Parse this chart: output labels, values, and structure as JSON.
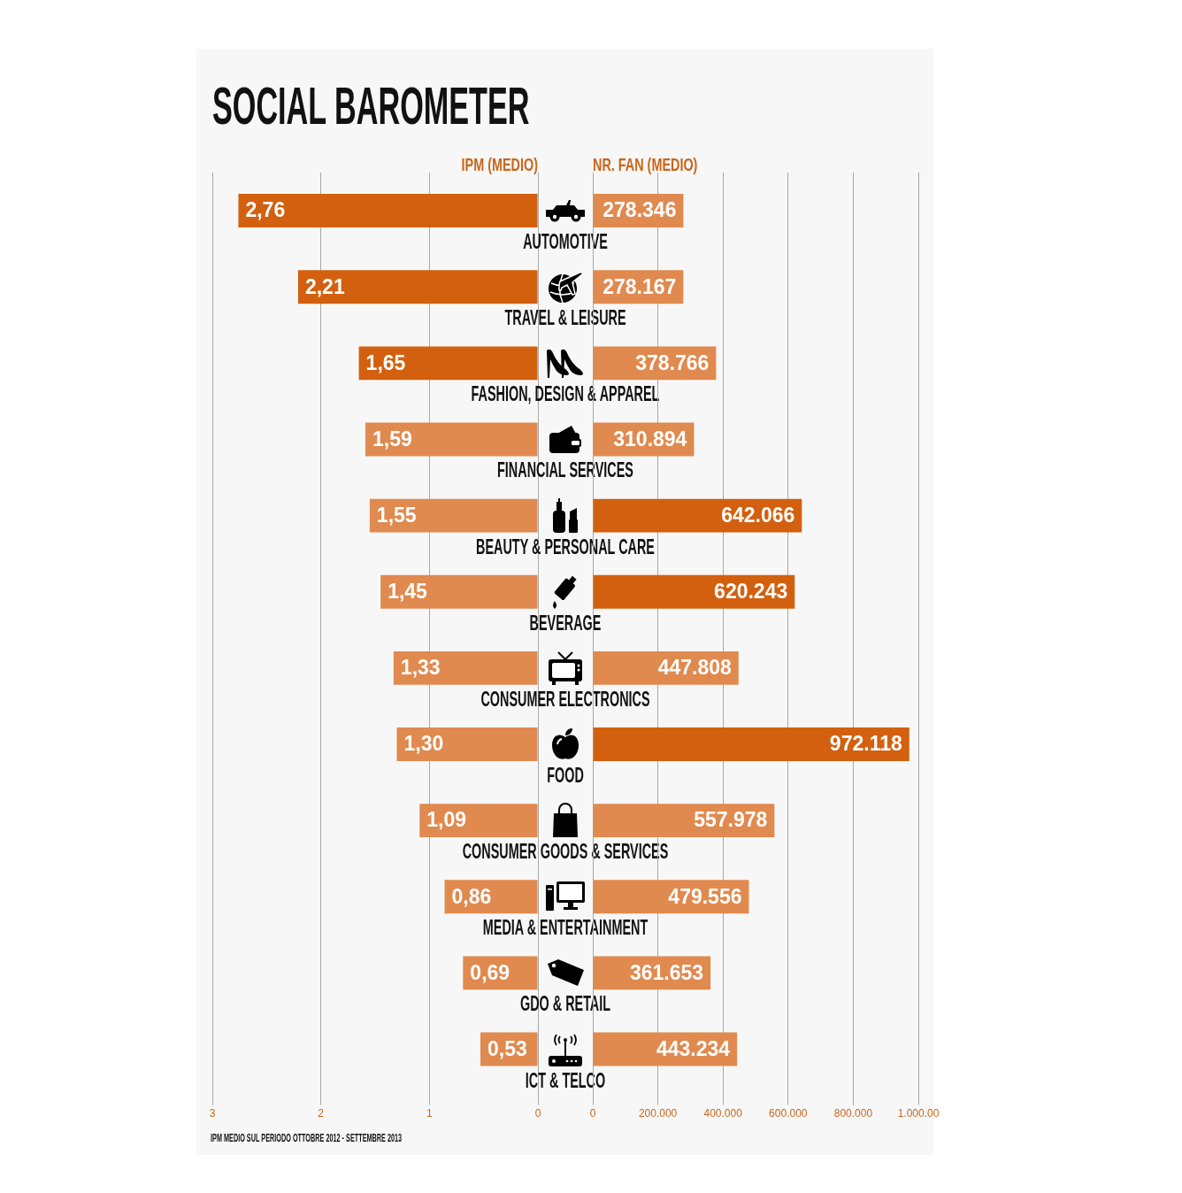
{
  "chart_data": [
    {
      "type": "bar",
      "orientation": "horizontal",
      "title": "SOCIAL BAROMETER",
      "xlabel": "IPM (MEDIO)",
      "categories": [
        "AUTOMOTIVE",
        "TRAVEL & LEISURE",
        "FASHION, DESIGN & APPAREL",
        "FINANCIAL SERVICES",
        "BEAUTY & PERSONAL CARE",
        "BEVERAGE",
        "CONSUMER ELECTRONICS",
        "FOOD",
        "CONSUMER GOODS & SERVICES",
        "MEDIA & ENTERTAINMENT",
        "GDO & RETAIL",
        "ICT & TELCO"
      ],
      "values": [
        2.76,
        2.21,
        1.65,
        1.59,
        1.55,
        1.45,
        1.33,
        1.3,
        1.09,
        0.86,
        0.69,
        0.53
      ],
      "colors": [
        "#d3600e",
        "#d3600e",
        "#d3600e",
        "#e08a4f",
        "#e08a4f",
        "#e08a4f",
        "#e08a4f",
        "#e08a4f",
        "#e08a4f",
        "#e08a4f",
        "#e08a4f",
        "#e08a4f"
      ],
      "value_labels": [
        "2,76",
        "2,21",
        "1,65",
        "1,59",
        "1,55",
        "1,45",
        "1,33",
        "1,30",
        "1,09",
        "0,86",
        "0,69",
        "0,53"
      ],
      "xlim": [
        3,
        0
      ],
      "xticks": [
        3,
        2,
        1,
        0
      ],
      "grid": "x",
      "annotations": [
        "IPM MEDIO SUL PERIODO OTTOBRE 2012 - SETTEMBRE 2013"
      ]
    },
    {
      "type": "bar",
      "orientation": "horizontal",
      "xlabel": "NR. FAN (MEDIO)",
      "categories": [
        null,
        null,
        null,
        null,
        null,
        null,
        null,
        null,
        null,
        null,
        null,
        null
      ],
      "values": [
        278346,
        278167,
        378766,
        310894,
        642066,
        620243,
        447808,
        972118,
        557978,
        479556,
        361653,
        443234
      ],
      "colors": [
        "#e08a4f",
        "#e08a4f",
        "#e08a4f",
        "#e08a4f",
        "#d3600e",
        "#d3600e",
        "#e08a4f",
        "#d3600e",
        "#e08a4f",
        "#e08a4f",
        "#e08a4f",
        "#e08a4f"
      ],
      "value_labels": [
        "278.346",
        "278.167",
        "378.766",
        "310.894",
        "642.066",
        "620.243",
        "447.808",
        "972.118",
        "557.978",
        "479.556",
        "361.653",
        "443.234"
      ],
      "xlim": [
        0,
        1000000
      ],
      "xticks": [
        0,
        {
          "value": 200000,
          "label": "200.000"
        },
        {
          "value": 400000,
          "label": "400.000"
        },
        {
          "value": 600000,
          "label": "600.000"
        },
        {
          "value": 800000,
          "label": "800.000"
        },
        {
          "value": 1000000,
          "label": "1.000.00"
        }
      ],
      "grid": "x"
    }
  ]
}
